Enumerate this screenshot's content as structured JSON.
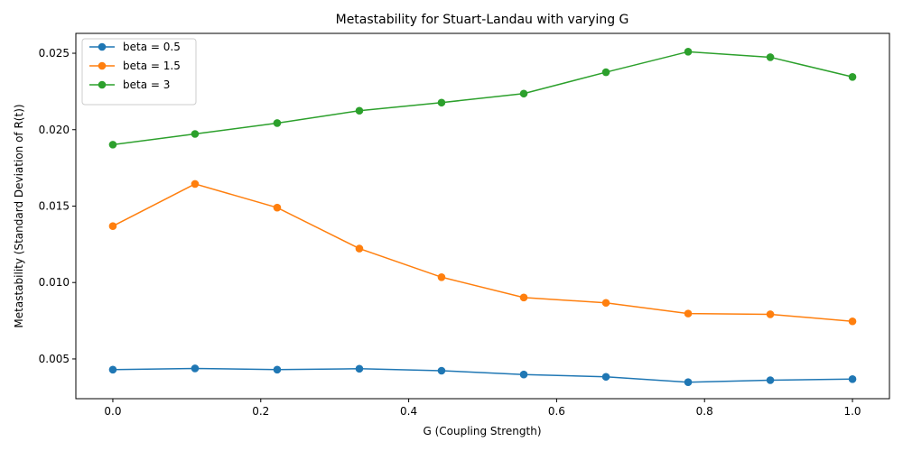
{
  "chart_data": {
    "type": "line",
    "title": "Metastability for Stuart-Landau with varying G",
    "xlabel": "G (Coupling Strength)",
    "ylabel": "Metastability (Standard Deviation of R(t))",
    "xlim": [
      -0.05,
      1.05
    ],
    "ylim": [
      0.0024,
      0.0263
    ],
    "xticks": [
      0.0,
      0.2,
      0.4,
      0.6,
      0.8,
      1.0
    ],
    "xtick_labels": [
      "0.0",
      "0.2",
      "0.4",
      "0.6",
      "0.8",
      "1.0"
    ],
    "yticks": [
      0.005,
      0.01,
      0.015,
      0.02,
      0.025
    ],
    "ytick_labels": [
      "0.005",
      "0.010",
      "0.015",
      "0.020",
      "0.025"
    ],
    "grid": false,
    "legend_position": "top-left",
    "x": [
      0.0,
      0.1111,
      0.2222,
      0.3333,
      0.4444,
      0.5556,
      0.6667,
      0.7778,
      0.8889,
      1.0
    ],
    "series": [
      {
        "name": "beta = 0.5",
        "color": "#1f77b4",
        "values": [
          0.0043,
          0.00438,
          0.0043,
          0.00436,
          0.00423,
          0.00398,
          0.00383,
          0.00348,
          0.00361,
          0.00368
        ]
      },
      {
        "name": "beta = 1.5",
        "color": "#ff7f0e",
        "values": [
          0.01369,
          0.01645,
          0.0149,
          0.01222,
          0.01035,
          0.00902,
          0.00867,
          0.00797,
          0.00792,
          0.00746
        ]
      },
      {
        "name": "beta = 3",
        "color": "#2ca02c",
        "values": [
          0.01902,
          0.01972,
          0.02043,
          0.02124,
          0.02177,
          0.02236,
          0.02376,
          0.0251,
          0.02474,
          0.02345
        ]
      }
    ]
  }
}
